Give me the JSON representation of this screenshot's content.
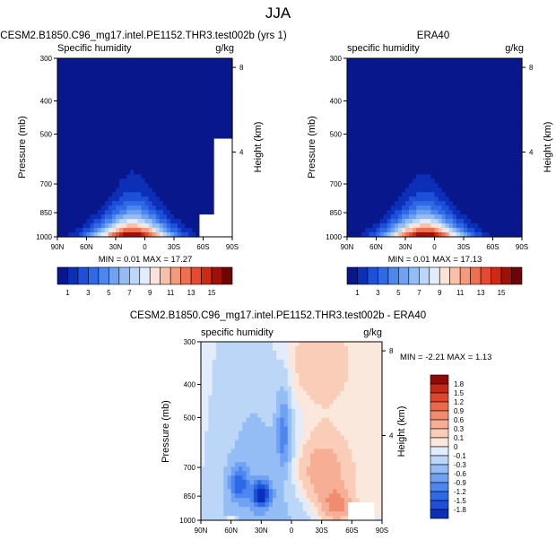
{
  "page": {
    "title": "JJA"
  },
  "colors": {
    "full_levels": [
      "#08188c",
      "#0c2fb8",
      "#1d4fd8",
      "#2f6ae6",
      "#4d86ee",
      "#6fa2f2",
      "#94bcf5",
      "#bcd6f8",
      "#e2ecfa",
      "#fbe2d8",
      "#f9c0a8",
      "#f59a7a",
      "#ef7050",
      "#e64830",
      "#cc2a14",
      "#a01008",
      "#6e0404"
    ],
    "diff_levels": [
      "#08188c",
      "#0c2fb8",
      "#1d4fd8",
      "#2f6ae6",
      "#4d86ee",
      "#6fa2f2",
      "#94bcf5",
      "#bcd6f8",
      "#e2ecfa",
      "#fbe8dc",
      "#f9cdb8",
      "#f6ae94",
      "#f28c6f",
      "#ec6a4c",
      "#de4630",
      "#c42818",
      "#8e0a06"
    ]
  },
  "chart_data": [
    {
      "id": "model",
      "type": "heatmap",
      "title": "CESM2.B1850.C96_mg17.intel.PE1152.THR3.test002b (yrs 1)",
      "subtitle": "Specific humidity",
      "units": "g/kg",
      "ylabel": "Pressure (mb)",
      "y2label": "Height (km)",
      "x_ticks": [
        "90N",
        "60N",
        "30N",
        "0",
        "30S",
        "60S",
        "90S"
      ],
      "y_ticks": [
        "300",
        "400",
        "500",
        "700",
        "850",
        "1000"
      ],
      "y2_ticks": [
        "8",
        "4"
      ],
      "stats": "MIN =  0.01  MAX =  17.27",
      "colorbar_labels": [
        "1",
        "3",
        "5",
        "7",
        "9",
        "11",
        "13",
        "15"
      ],
      "range": [
        0,
        17.27
      ]
    },
    {
      "id": "obs",
      "type": "heatmap",
      "title": "ERA40",
      "subtitle": "specific humidity",
      "units": "g/kg",
      "ylabel": "Pressure (mb)",
      "y2label": "Height (km)",
      "x_ticks": [
        "90N",
        "60N",
        "30N",
        "0",
        "30S",
        "60S",
        "90S"
      ],
      "y_ticks": [
        "300",
        "400",
        "500",
        "700",
        "850",
        "1000"
      ],
      "y2_ticks": [
        "8",
        "4"
      ],
      "stats": "MIN =  0.01  MAX =  17.13",
      "colorbar_labels": [
        "1",
        "3",
        "5",
        "7",
        "9",
        "11",
        "13",
        "15"
      ],
      "range": [
        0,
        17.13
      ]
    },
    {
      "id": "diff",
      "type": "heatmap",
      "title": "CESM2.B1850.C96_mg17.intel.PE1152.THR3.test002b - ERA40",
      "subtitle": "specific humidity",
      "units": "g/kg",
      "ylabel": "Pressure (mb)",
      "y2label": "Height (km)",
      "x_ticks": [
        "90N",
        "60N",
        "30N",
        "0",
        "30S",
        "60S",
        "90S"
      ],
      "y_ticks": [
        "300",
        "400",
        "500",
        "700",
        "850",
        "1000"
      ],
      "y2_ticks": [
        "8",
        "4"
      ],
      "stats": "MIN = -2.21  MAX =  1.13",
      "colorbar_labels": [
        "1.8",
        "1.5",
        "1.2",
        "0.9",
        "0.6",
        "0.3",
        "0.1",
        "0",
        "-0.1",
        "-0.3",
        "-0.6",
        "-0.9",
        "-1.2",
        "-1.5",
        "-1.8"
      ],
      "range": [
        -2.21,
        1.13
      ]
    }
  ]
}
